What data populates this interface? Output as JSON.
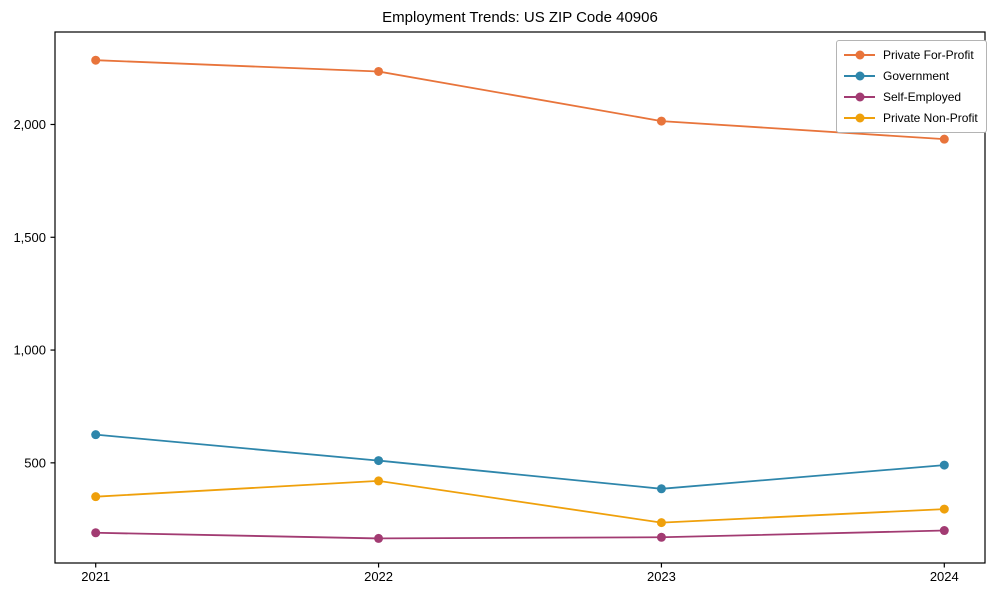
{
  "chart_data": {
    "type": "line",
    "title": "Employment Trends: US ZIP Code 40906",
    "xlabel": "",
    "ylabel": "",
    "categories": [
      "2021",
      "2022",
      "2023",
      "2024"
    ],
    "series": [
      {
        "name": "Private For-Profit",
        "color": "#e8743b",
        "values": [
          2285,
          2235,
          2015,
          1935
        ]
      },
      {
        "name": "Government",
        "color": "#2e86ab",
        "values": [
          625,
          510,
          385,
          490
        ]
      },
      {
        "name": "Self-Employed",
        "color": "#a23b72",
        "values": [
          190,
          165,
          170,
          200
        ]
      },
      {
        "name": "Private Non-Profit",
        "color": "#efa00b",
        "values": [
          350,
          420,
          235,
          295
        ]
      }
    ],
    "ylim": [
      56,
      2410
    ],
    "yticks": [
      {
        "value": 500,
        "label": "500"
      },
      {
        "value": 1000,
        "label": "1,000"
      },
      {
        "value": 1500,
        "label": "1,500"
      },
      {
        "value": 2000,
        "label": "2,000"
      }
    ],
    "grid": false,
    "legend_position": "upper right",
    "marker": "circle",
    "line_width": 1.8,
    "marker_radius": 4.5,
    "frame_color": "#000000",
    "background_color": "#ffffff"
  }
}
